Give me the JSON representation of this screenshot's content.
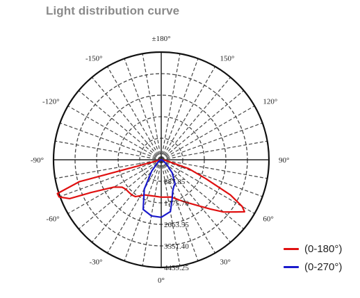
{
  "page": {
    "title": "Light distribution curve"
  },
  "chart_data": {
    "type": "polar",
    "title": "Light distribution curve",
    "angle_ticks": [
      {
        "deg": 180,
        "label": "±180°"
      },
      {
        "deg": 150,
        "label": "150°"
      },
      {
        "deg": -150,
        "label": "-150°"
      },
      {
        "deg": 120,
        "label": "120°"
      },
      {
        "deg": -120,
        "label": "-120°"
      },
      {
        "deg": 90,
        "label": "90°"
      },
      {
        "deg": -90,
        "label": "-90°"
      },
      {
        "deg": 60,
        "label": "60°"
      },
      {
        "deg": -60,
        "label": "-60°"
      },
      {
        "deg": 30,
        "label": "30°"
      },
      {
        "deg": -30,
        "label": "-30°"
      },
      {
        "deg": 0,
        "label": "0°"
      }
    ],
    "radial_ticks": [
      887.85,
      1775.7,
      2663.55,
      3551.4,
      4439.25
    ],
    "radial_labels": [
      "887.85",
      "1775.70",
      "2663.55",
      "3551.40",
      "4439.25"
    ],
    "rlim": [
      0,
      4439.25
    ],
    "grid": true,
    "legend_position": "bottom-right",
    "series": [
      {
        "name": "(0-180°)",
        "color": "#e01010",
        "points": [
          [
            -90,
            0
          ],
          [
            -80,
            25
          ],
          [
            -75,
            3500
          ],
          [
            -72,
            4500
          ],
          [
            -70,
            4480
          ],
          [
            -67,
            4100
          ],
          [
            -65,
            3200
          ],
          [
            -60,
            2250
          ],
          [
            -55,
            1970
          ],
          [
            -50,
            1900
          ],
          [
            -45,
            1890
          ],
          [
            -40,
            1890
          ],
          [
            -35,
            1855
          ],
          [
            -25,
            1600
          ],
          [
            -15,
            1540
          ],
          [
            0,
            1540
          ],
          [
            15,
            1590
          ],
          [
            20,
            1700
          ],
          [
            25,
            1850
          ],
          [
            30,
            2020
          ],
          [
            40,
            2500
          ],
          [
            45,
            2880
          ],
          [
            50,
            3350
          ],
          [
            55,
            3750
          ],
          [
            58,
            4050
          ],
          [
            60,
            3850
          ],
          [
            63,
            3200
          ],
          [
            67,
            2000
          ],
          [
            72,
            1200
          ],
          [
            80,
            200
          ],
          [
            90,
            0
          ]
        ]
      },
      {
        "name": "(0-270°)",
        "color": "#1a1acc",
        "points": [
          [
            -90,
            0
          ],
          [
            -60,
            120
          ],
          [
            -40,
            600
          ],
          [
            -30,
            1400
          ],
          [
            -20,
            2180
          ],
          [
            -10,
            2350
          ],
          [
            0,
            2370
          ],
          [
            10,
            2170
          ],
          [
            15,
            1720
          ],
          [
            20,
            1380
          ],
          [
            25,
            1220
          ],
          [
            30,
            1140
          ],
          [
            40,
            700
          ],
          [
            50,
            300
          ],
          [
            70,
            60
          ],
          [
            90,
            0
          ]
        ]
      }
    ]
  },
  "legend": {
    "items": [
      {
        "label": "(0-180°)",
        "color": "#e01010"
      },
      {
        "label": "(0-270°)",
        "color": "#1a1acc"
      }
    ]
  }
}
